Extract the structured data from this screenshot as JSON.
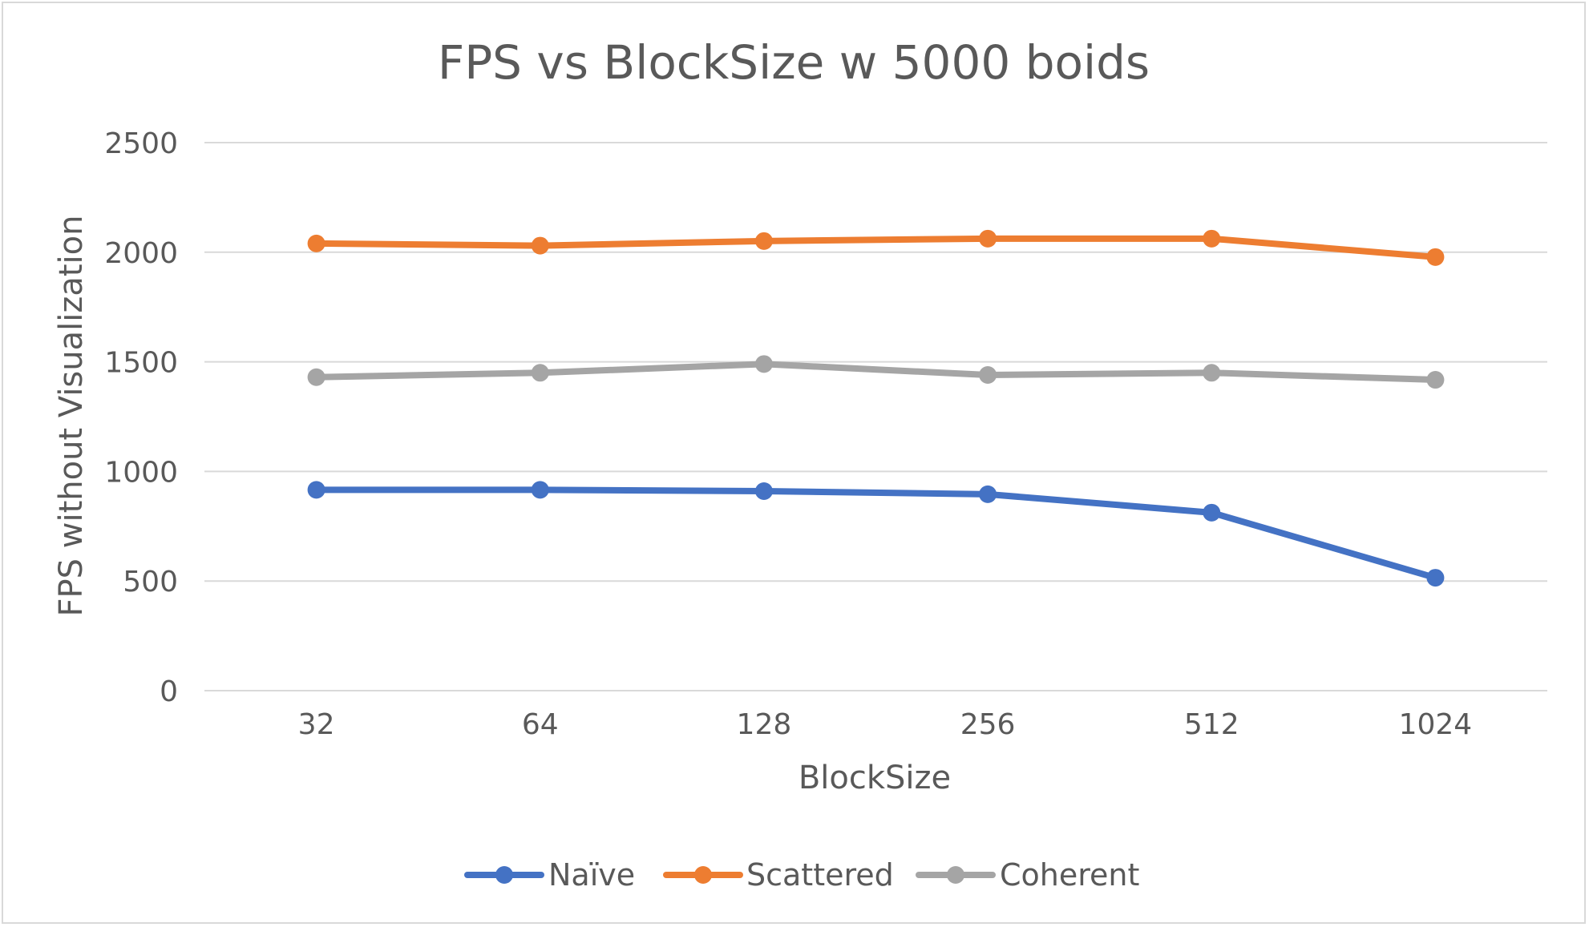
{
  "chart_data": {
    "type": "line",
    "title": "FPS vs BlockSize w 5000 boids",
    "xlabel": "BlockSize",
    "ylabel": "FPS without Visualization",
    "categories": [
      "32",
      "64",
      "128",
      "256",
      "512",
      "1024"
    ],
    "ylim": [
      0,
      2500
    ],
    "yticks": [
      "0",
      "500",
      "1000",
      "1500",
      "2000",
      "2500"
    ],
    "grid": true,
    "legend_position": "bottom",
    "series": [
      {
        "name": "Naïve",
        "color": "#4472c4",
        "values": [
          916,
          916,
          910,
          896,
          812,
          515
        ]
      },
      {
        "name": "Scattered",
        "color": "#ed7d31",
        "values": [
          2040,
          2030,
          2051,
          2062,
          2062,
          1978
        ]
      },
      {
        "name": "Coherent",
        "color": "#a5a5a5",
        "values": [
          1430,
          1450,
          1490,
          1440,
          1450,
          1418
        ]
      }
    ]
  }
}
